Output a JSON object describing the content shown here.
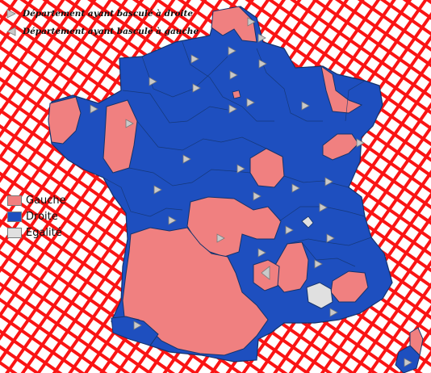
{
  "legend_top": {
    "shift_right": {
      "label": "Département ayant basculé à droite",
      "icon": "triangle-right-icon"
    },
    "shift_left": {
      "label": "Département ayant basculé à gauche",
      "icon": "triangle-left-icon"
    }
  },
  "legend_colors": {
    "gauche": {
      "label": "Gauche",
      "color": "#f08080"
    },
    "droite": {
      "label": "Droite",
      "color": "#1e4fbf"
    },
    "egalite": {
      "label": "Egalité",
      "color": "#e0e0e0"
    }
  },
  "colors": {
    "map_background": "#fa1414",
    "map_mesh": "#ffffff",
    "department_border": "#14336b",
    "marker_fill": "#c9c9c9",
    "marker_stroke": "#7a7a7a"
  }
}
